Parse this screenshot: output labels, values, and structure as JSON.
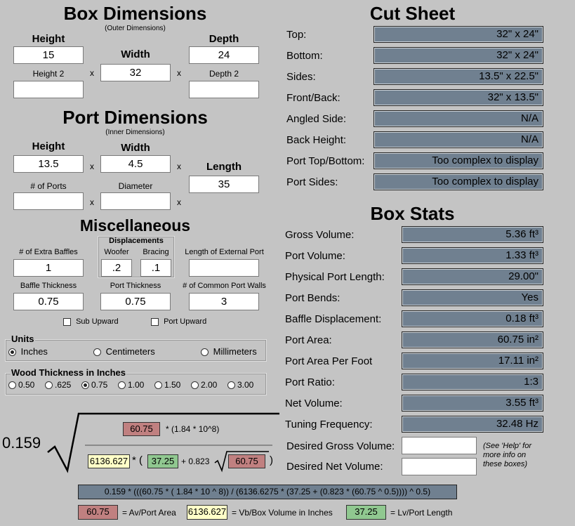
{
  "box": {
    "title": "Box Dimensions",
    "subtitle": "(Outer Dimensions)",
    "height_label": "Height",
    "width_label": "Width",
    "depth_label": "Depth",
    "height2_label": "Height 2",
    "depth2_label": "Depth 2",
    "height": "15",
    "width": "32",
    "depth": "24",
    "height2": "",
    "depth2": "",
    "x": "x"
  },
  "port": {
    "title": "Port Dimensions",
    "subtitle": "(Inner Dimensions)",
    "height_label": "Height",
    "width_label": "Width",
    "length_label": "Length",
    "num_ports_label": "# of Ports",
    "diameter_label": "Diameter",
    "height": "13.5",
    "width": "4.5",
    "length": "35",
    "num_ports": "",
    "diameter": ""
  },
  "misc": {
    "title": "Miscellaneous",
    "displacements_label": "Displacements",
    "extra_baffles_label": "# of Extra Baffles",
    "woofer_label": "Woofer",
    "bracing_label": "Bracing",
    "ext_port_label": "Length of External Port",
    "extra_baffles": "1",
    "woofer": ".2",
    "bracing": ".1",
    "ext_port": "",
    "baffle_thickness_label": "Baffle Thickness",
    "port_thickness_label": "Port Thickness",
    "common_walls_label": "# of Common Port Walls",
    "baffle_thickness": "0.75",
    "port_thickness": "0.75",
    "common_walls": "3",
    "sub_upward": "Sub Upward",
    "port_upward": "Port Upward"
  },
  "units": {
    "title": "Units",
    "options": [
      "Inches",
      "Centimeters",
      "Millimeters"
    ],
    "selected": "Inches"
  },
  "wood": {
    "title": "Wood Thickness in Inches",
    "options": [
      "0.50",
      ".625",
      "0.75",
      "1.00",
      "1.50",
      "2.00",
      "3.00"
    ],
    "selected": "0.75"
  },
  "cut": {
    "title": "Cut Sheet",
    "rows": [
      {
        "label": "Top:",
        "value": "32\" x 24\""
      },
      {
        "label": "Bottom:",
        "value": "32\" x 24\""
      },
      {
        "label": "Sides:",
        "value": "13.5\" x 22.5\""
      },
      {
        "label": "Front/Back:",
        "value": "32\" x 13.5\""
      },
      {
        "label": "Angled Side:",
        "value": "N/A"
      },
      {
        "label": "Back Height:",
        "value": "N/A"
      },
      {
        "label": "Port Top/Bottom:",
        "value": "Too complex to display"
      },
      {
        "label": "Port Sides:",
        "value": "Too complex to display"
      }
    ]
  },
  "stats": {
    "title": "Box Stats",
    "rows": [
      {
        "label": "Gross Volume:",
        "value": "5.36 ft³"
      },
      {
        "label": "Port Volume:",
        "value": "1.33 ft³"
      },
      {
        "label": "Physical Port Length:",
        "value": "29.00\""
      },
      {
        "label": "Port Bends:",
        "value": "Yes"
      },
      {
        "label": "Baffle Displacement:",
        "value": "0.18 ft³"
      },
      {
        "label": "Port Area:",
        "value": "60.75 in²"
      },
      {
        "label": "Port Area Per Foot",
        "value": "17.11 in²"
      },
      {
        "label": "Port Ratio:",
        "value": "1:3"
      },
      {
        "label": "Net Volume:",
        "value": "3.55 ft³"
      },
      {
        "label": "Tuning Frequency:",
        "value": "32.48 Hz"
      }
    ],
    "desired_gross_label": "Desired Gross Volume:",
    "desired_net_label": "Desired Net Volume:",
    "desired_gross": "",
    "desired_net": "",
    "help_note": "(See 'Help' for more info on these boxes)"
  },
  "formula": {
    "coef": "0.159",
    "av": "60.75",
    "mult": "* (1.84 * 10^8)",
    "vb": "6136.627",
    "star_paren": "* (",
    "lv": "37.25",
    "plus": "+ 0.823",
    "av2": "60.75",
    "close": ")",
    "full": "0.159 * (((60.75 * ( 1.84 * 10 ^ 8)) / (6136.6275 * (37.25 + (0.823 * (60.75 ^ 0.5)))) ^ 0.5)",
    "legend_av": "60.75",
    "legend_av_text": "= Av/Port Area",
    "legend_vb": "6136.627",
    "legend_vb_text": "= Vb/Box Volume in Inches",
    "legend_lv": "37.25",
    "legend_lv_text": "= Lv/Port Length"
  }
}
